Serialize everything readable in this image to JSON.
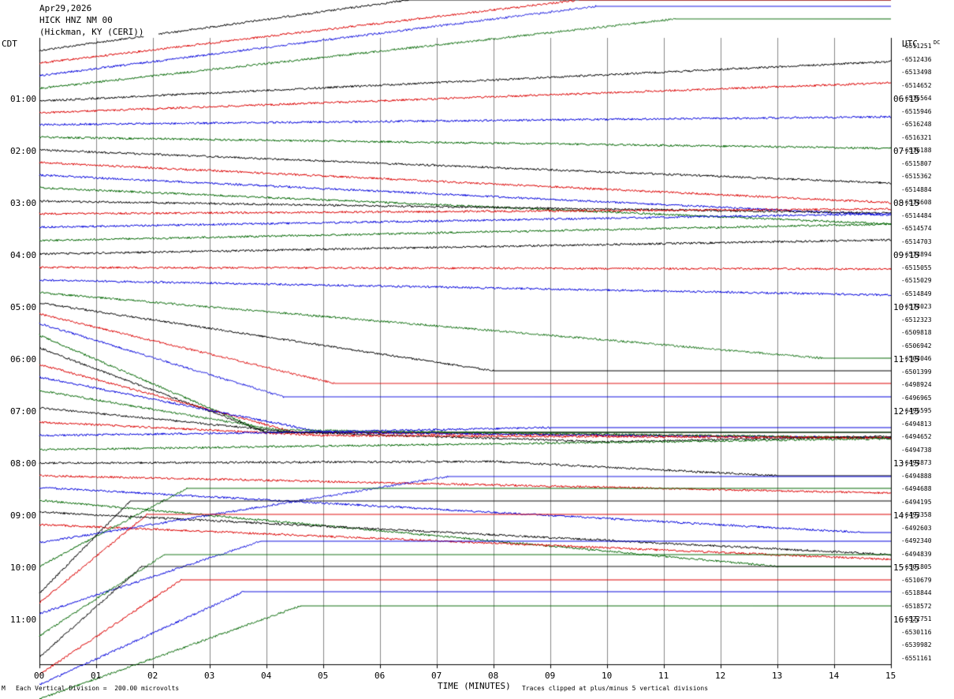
{
  "header": {
    "date": "Apr29,2026",
    "channel": "HICK HNZ NM 00",
    "station": "(Hickman, KY (CERI))"
  },
  "left_label": "CDT",
  "right_label": "UTC",
  "dc_label": "DC",
  "footer": {
    "scale_note": "Each Vertical Division =  200.00 microvolts",
    "xlabel": "TIME (MINUTES)",
    "clip_note": "Traces clipped at plus/minus 5 vertical divisions",
    "corner_mark": "M"
  },
  "chart_data": {
    "type": "line",
    "xlabel": "TIME (MINUTES)",
    "xlim": [
      0,
      15
    ],
    "x_ticks": [
      "00",
      "01",
      "02",
      "03",
      "04",
      "05",
      "06",
      "07",
      "08",
      "09",
      "10",
      "11",
      "12",
      "13",
      "14",
      "15"
    ],
    "left_time_labels": [
      "01:00",
      "02:00",
      "03:00",
      "04:00",
      "05:00",
      "06:00",
      "07:00",
      "08:00",
      "09:00",
      "10:00",
      "11:00"
    ],
    "right_time_labels": [
      "06:15",
      "07:15",
      "08:15",
      "09:15",
      "10:15",
      "11:15",
      "12:15",
      "13:15",
      "14:15",
      "15:15",
      "16:15"
    ],
    "trace_colors": [
      "#000000",
      "#dd0000",
      "#0000dd",
      "#006600"
    ],
    "dc_offsets": [
      "-6511251",
      "-6512436",
      "-6513498",
      "-6514652",
      "-6515564",
      "-6515946",
      "-6516248",
      "-6516321",
      "-6516188",
      "-6515807",
      "-6515362",
      "-6514884",
      "-6514608",
      "-6514484",
      "-6514574",
      "-6514703",
      "-6514894",
      "-6515055",
      "-6515029",
      "-6514849",
      "-6514023",
      "-6512323",
      "-6509818",
      "-6506942",
      "-6504046",
      "-6501399",
      "-6498924",
      "-6496965",
      "-6495595",
      "-6494813",
      "-6494652",
      "-6494738",
      "-6494873",
      "-6494888",
      "-6494688",
      "-6494195",
      "-6493358",
      "-6492603",
      "-6492340",
      "-6494839",
      "-6501805",
      "-6510679",
      "-6518844",
      "-6518572",
      "-6522751",
      "-6530116",
      "-6539982",
      "-6551161"
    ],
    "trace_shapes": [
      [
        [
          0,
          64
        ],
        [
          6.5,
          0
        ],
        [
          15,
          0
        ]
      ],
      [
        [
          0,
          80
        ],
        [
          9.5,
          0
        ],
        [
          15,
          0
        ]
      ],
      [
        [
          0,
          96
        ],
        [
          9.8,
          8
        ],
        [
          15,
          8
        ]
      ],
      [
        [
          0,
          112
        ],
        [
          11.2,
          24
        ],
        [
          15,
          24
        ]
      ],
      [
        [
          0,
          128
        ],
        [
          15,
          78
        ]
      ],
      [
        [
          0,
          143
        ],
        [
          15,
          105
        ]
      ],
      [
        [
          0,
          158
        ],
        [
          15,
          148
        ]
      ],
      [
        [
          0,
          174
        ],
        [
          15,
          188
        ]
      ],
      [
        [
          0,
          190
        ],
        [
          15,
          232
        ]
      ],
      [
        [
          0,
          206
        ],
        [
          15,
          257
        ]
      ],
      [
        [
          0,
          222
        ],
        [
          15,
          273
        ]
      ],
      [
        [
          0,
          238
        ],
        [
          15,
          284
        ]
      ],
      [
        [
          0,
          255
        ],
        [
          15,
          270
        ]
      ],
      [
        [
          0,
          271
        ],
        [
          15,
          265
        ]
      ],
      [
        [
          0,
          288
        ],
        [
          15,
          271
        ]
      ],
      [
        [
          0,
          305
        ],
        [
          15,
          284
        ]
      ],
      [
        [
          0,
          322
        ],
        [
          15,
          304
        ]
      ],
      [
        [
          0,
          339
        ],
        [
          15,
          341
        ]
      ],
      [
        [
          0,
          355
        ],
        [
          15,
          374
        ]
      ],
      [
        [
          0,
          371
        ],
        [
          13.8,
          454
        ],
        [
          15,
          454
        ]
      ],
      [
        [
          0,
          384
        ],
        [
          8,
          470
        ],
        [
          15,
          470
        ]
      ],
      [
        [
          0,
          398
        ],
        [
          5.2,
          486
        ],
        [
          15,
          486
        ]
      ],
      [
        [
          0,
          410
        ],
        [
          4.3,
          503
        ],
        [
          15,
          503
        ]
      ],
      [
        [
          0,
          425
        ],
        [
          4,
          548
        ],
        [
          15,
          548
        ]
      ],
      [
        [
          0,
          441
        ],
        [
          4,
          548
        ],
        [
          15,
          548
        ]
      ],
      [
        [
          0,
          462
        ],
        [
          4.5,
          548
        ],
        [
          15,
          555
        ]
      ],
      [
        [
          0,
          478
        ],
        [
          5,
          548
        ],
        [
          15,
          555
        ]
      ],
      [
        [
          0,
          495
        ],
        [
          4.2,
          545
        ],
        [
          15,
          555
        ]
      ],
      [
        [
          0,
          517
        ],
        [
          4.5,
          548
        ],
        [
          10,
          560
        ],
        [
          15,
          553
        ]
      ],
      [
        [
          0,
          535
        ],
        [
          5,
          552
        ],
        [
          15,
          555
        ]
      ],
      [
        [
          0,
          552
        ],
        [
          4.5,
          548
        ],
        [
          9,
          542
        ],
        [
          15,
          542
        ]
      ],
      [
        [
          0,
          570
        ],
        [
          15,
          556
        ]
      ],
      [
        [
          0,
          587
        ],
        [
          8,
          585
        ],
        [
          13,
          603
        ],
        [
          15,
          603
        ]
      ],
      [
        [
          0,
          603
        ],
        [
          15,
          625
        ]
      ],
      [
        [
          0,
          618
        ],
        [
          14.5,
          675
        ],
        [
          15,
          675
        ]
      ],
      [
        [
          0,
          634
        ],
        [
          13,
          718
        ],
        [
          15,
          718
        ]
      ],
      [
        [
          0,
          649
        ],
        [
          15,
          703
        ]
      ],
      [
        [
          0,
          665
        ],
        [
          15,
          709
        ]
      ],
      [
        [
          0,
          688
        ],
        [
          7.2,
          604
        ],
        [
          15,
          604
        ]
      ],
      [
        [
          0,
          718
        ],
        [
          2.6,
          619
        ],
        [
          15,
          619
        ]
      ],
      [
        [
          0,
          752
        ],
        [
          1.6,
          635
        ],
        [
          15,
          635
        ]
      ],
      [
        [
          0,
          764
        ],
        [
          1.9,
          652
        ],
        [
          15,
          652
        ]
      ],
      [
        [
          0,
          778
        ],
        [
          3.9,
          686
        ],
        [
          15,
          686
        ]
      ],
      [
        [
          0,
          806
        ],
        [
          2.2,
          703
        ],
        [
          15,
          703
        ]
      ],
      [
        [
          0,
          833
        ],
        [
          1.8,
          718
        ],
        [
          15,
          718
        ]
      ],
      [
        [
          0,
          855
        ],
        [
          2.5,
          735
        ],
        [
          15,
          735
        ]
      ],
      [
        [
          0,
          868
        ],
        [
          3.6,
          750
        ],
        [
          15,
          750
        ]
      ],
      [
        [
          0,
          886
        ],
        [
          4.6,
          768
        ],
        [
          15,
          768
        ]
      ]
    ]
  }
}
